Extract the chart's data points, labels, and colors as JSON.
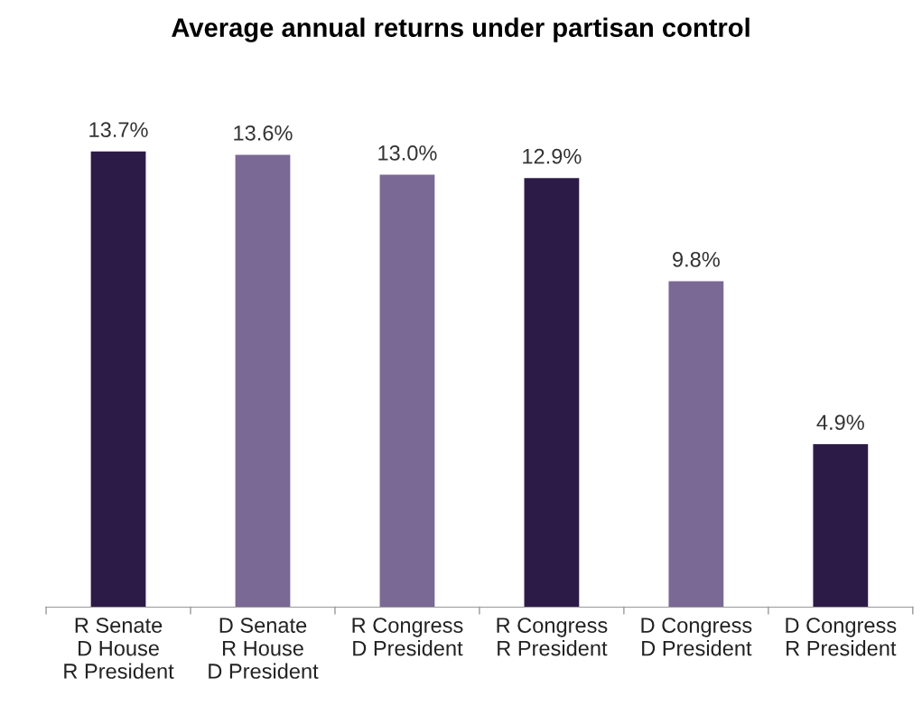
{
  "chart_data": {
    "type": "bar",
    "title": "Average annual returns under partisan control",
    "categories": [
      "R Senate\nD House\nR President",
      "D Senate\nR House\nD President",
      "R Congress\nD President",
      "R Congress\nR President",
      "D Congress\nD President",
      "D Congress\nR President"
    ],
    "values": [
      13.7,
      13.6,
      13.0,
      12.9,
      9.8,
      4.9
    ],
    "colors": [
      "#2d1b47",
      "#7a6895",
      "#7a6895",
      "#2d1b47",
      "#7a6895",
      "#2d1b47"
    ],
    "value_labels": [
      "13.7%",
      "13.6%",
      "13.0%",
      "12.9%",
      "9.8%",
      "4.9%"
    ],
    "tick_labels": "x",
    "grid": false,
    "legend": false
  }
}
